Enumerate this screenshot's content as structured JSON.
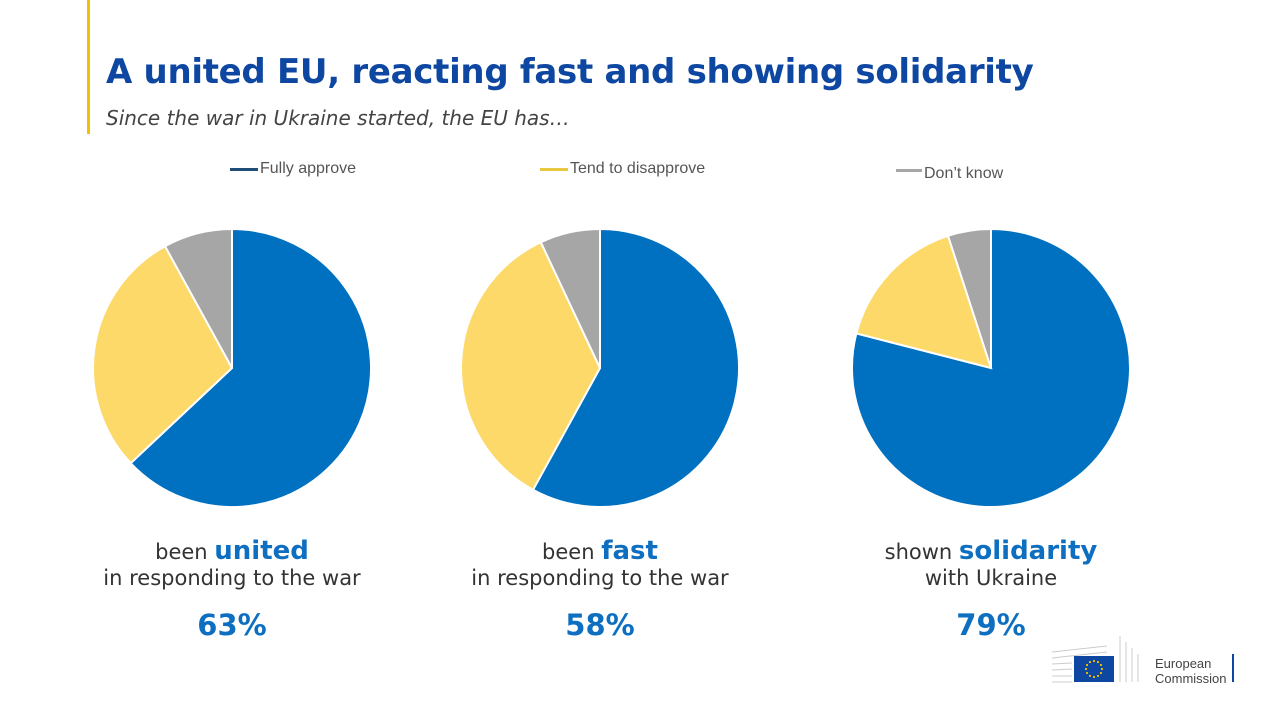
{
  "title": "A united EU, reacting fast and showing solidarity",
  "subtitle": "Since the war in Ukraine started, the EU has…",
  "colors": {
    "fully_approve": "#0070c0",
    "tend_to_disapprove": "#fdd96a",
    "dont_know": "#a6a6a6",
    "legend_fully": "#1f4e79",
    "legend_tend": "#e8c840",
    "title": "#0e47a1",
    "accent": "#f2c200"
  },
  "chart_data": {
    "type": "pie",
    "legend": [
      "Fully approve",
      "Tend to disapprove",
      "Don't know"
    ],
    "legend_labels": {
      "fully": "Fully approve",
      "tend": "Tend to disapprove",
      "dk": "Don’t know"
    },
    "charts": [
      {
        "caption_pre": "been ",
        "caption_bold": "united",
        "caption_line2": "in responding to the war",
        "label": "63%",
        "values": [
          63,
          29,
          8
        ]
      },
      {
        "caption_pre": "been ",
        "caption_bold": "fast",
        "caption_line2": "in responding to the war",
        "label": "58%",
        "values": [
          58,
          35,
          7
        ]
      },
      {
        "caption_pre": "shown ",
        "caption_bold": "solidarity",
        "caption_line2": "with Ukraine",
        "label": "79%",
        "values": [
          79,
          16,
          5
        ]
      }
    ]
  },
  "logo": {
    "line1": "European",
    "line2": "Commission"
  }
}
